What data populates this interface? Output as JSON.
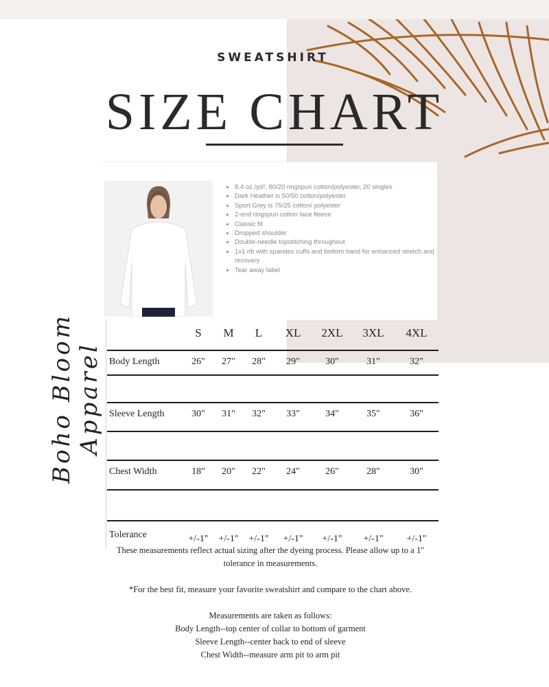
{
  "header": {
    "kicker": "SWEATSHIRT",
    "title": "SIZE CHART"
  },
  "brand": "Boho Bloom Apparel",
  "product": {
    "features": [
      "8.4 oz./yd², 80/20 ringspun cotton/polyester, 20 singles",
      "Dark Heather is 50/50 cotton/polyester",
      "Sport Grey is 75/25 cotton/ polyester",
      "2-end ringspun cotton face fleece",
      "Classic fit",
      "Dropped shoulder",
      "Double-needle topstitching throughout",
      "1x1 rib with spandex cuffs and bottom band for enhanced stretch and recovery",
      "Tear away label"
    ]
  },
  "table": {
    "sizes": [
      "S",
      "M",
      "L",
      "XL",
      "2XL",
      "3XL",
      "4XL"
    ],
    "rows": [
      {
        "label": "Body Length",
        "values": [
          "26\"",
          "27\"",
          "28\"",
          "29\"",
          "30\"",
          "31\"",
          "32\""
        ]
      },
      {
        "label": "Sleeve Length",
        "values": [
          "30\"",
          "31\"",
          "32\"",
          "33\"",
          "34\"",
          "35\"",
          "36\""
        ]
      },
      {
        "label": "Chest Width",
        "values": [
          "18\"",
          "20\"",
          "22\"",
          "24\"",
          "26\"",
          "28\"",
          "30\""
        ]
      },
      {
        "label": "Tolerance",
        "values": [
          "+/-1\"",
          "+/-1\"",
          "+/-1\"",
          "+/-1\"",
          "+/-1\"",
          "+/-1\"",
          "+/-1\""
        ]
      }
    ]
  },
  "notes": [
    "These measurements reflect actual sizing after the dyeing process. Please allow up to a 1\" tolerance in measurements.",
    "",
    "*For the best fit, measure your favorite sweatshirt and compare to the chart above.",
    "",
    "Measurements are taken as follows:",
    "Body Length--top center of collar to bottom of garment",
    "Sleeve Length--center back to end of sleeve",
    "Chest Width--measure arm pit to arm pit"
  ],
  "colors": {
    "panel": "#ede5e3",
    "leaf": "#a8662a",
    "text": "#2a2a2a"
  }
}
